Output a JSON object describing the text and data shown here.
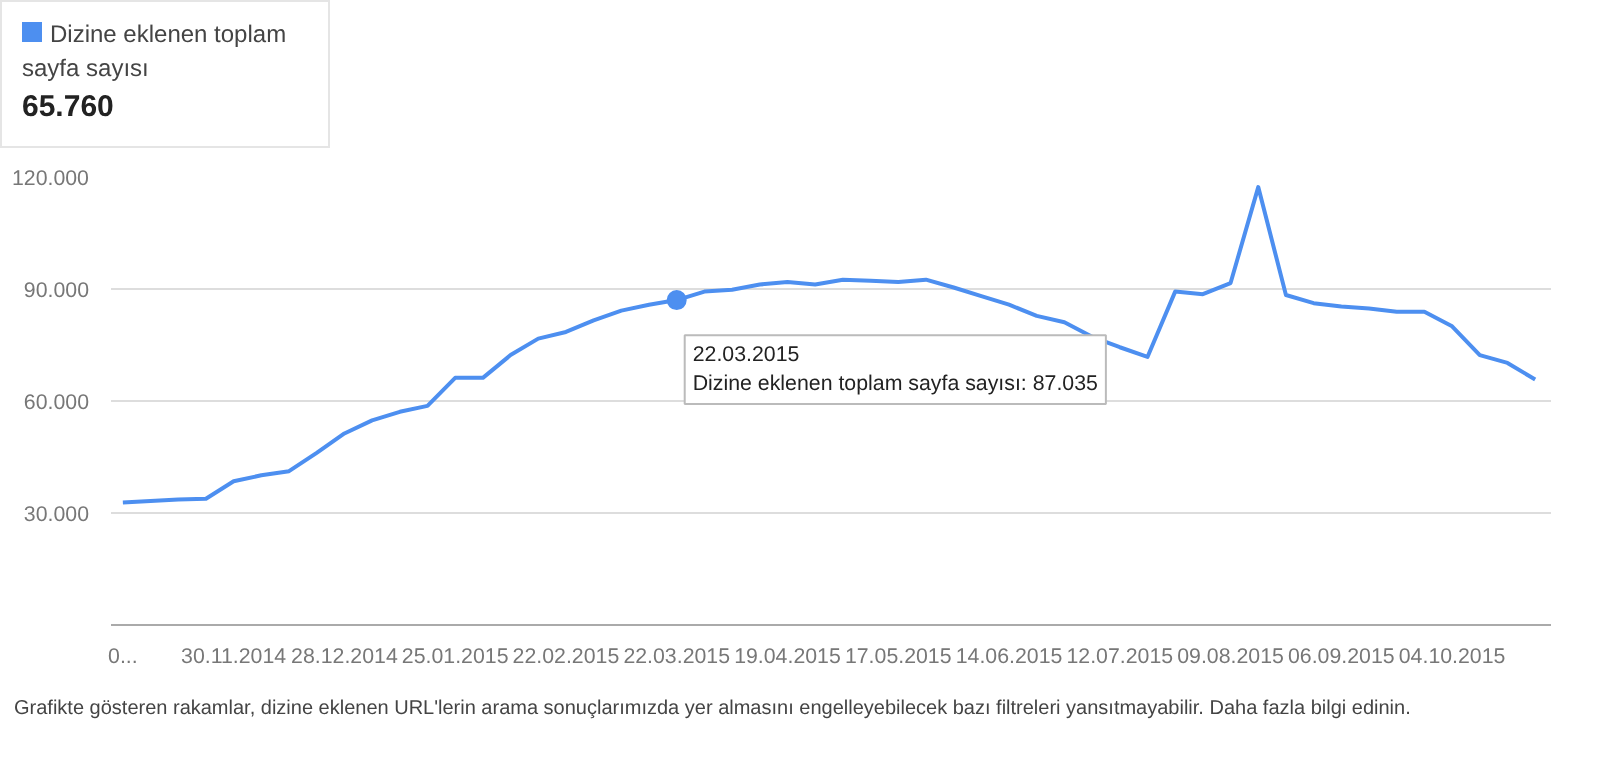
{
  "chart_data": {
    "type": "line",
    "x": [
      "2014-11-02",
      "2014-11-09",
      "2014-11-16",
      "2014-11-23",
      "2014-11-30",
      "2014-12-07",
      "2014-12-14",
      "2014-12-21",
      "2014-12-28",
      "2015-01-04",
      "2015-01-11",
      "2015-01-18",
      "2015-01-25",
      "2015-02-01",
      "2015-02-08",
      "2015-02-15",
      "2015-02-22",
      "2015-03-01",
      "2015-03-08",
      "2015-03-15",
      "2015-03-22",
      "2015-03-29",
      "2015-04-05",
      "2015-04-12",
      "2015-04-19",
      "2015-04-26",
      "2015-05-03",
      "2015-05-10",
      "2015-05-17",
      "2015-05-24",
      "2015-05-31",
      "2015-06-07",
      "2015-06-14",
      "2015-06-21",
      "2015-06-28",
      "2015-07-05",
      "2015-07-12",
      "2015-07-19",
      "2015-07-26",
      "2015-08-02",
      "2015-08-09",
      "2015-08-16",
      "2015-08-23",
      "2015-08-30",
      "2015-09-06",
      "2015-09-13",
      "2015-09-20",
      "2015-09-27",
      "2015-10-04",
      "2015-10-11",
      "2015-10-18",
      "2015-10-25"
    ],
    "series": [
      {
        "name": "Dizine eklenen toplam sayfa sayısı",
        "color": "#4d8ff0",
        "values": [
          32800,
          33200,
          33600,
          33800,
          38500,
          40100,
          41200,
          46100,
          51300,
          54800,
          57100,
          58700,
          66200,
          66200,
          72300,
          76700,
          78500,
          81600,
          84200,
          85800,
          87035,
          89300,
          89800,
          91200,
          91900,
          91200,
          92500,
          92200,
          91900,
          92500,
          90400,
          88100,
          85800,
          82800,
          81100,
          77200,
          74400,
          71800,
          89300,
          88600,
          91600,
          117300,
          88400,
          86200,
          85300,
          84800,
          83900,
          83900,
          80000,
          72300,
          70200,
          65760
        ]
      }
    ],
    "xlim": [
      "2014-10-30",
      "2015-10-29"
    ],
    "xticks": [
      {
        "value": "2014-11-02",
        "label": "0..."
      },
      {
        "value": "2014-11-30",
        "label": "30.11.2014"
      },
      {
        "value": "2014-12-28",
        "label": "28.12.2014"
      },
      {
        "value": "2015-01-25",
        "label": "25.01.2015"
      },
      {
        "value": "2015-02-22",
        "label": "22.02.2015"
      },
      {
        "value": "2015-03-22",
        "label": "22.03.2015"
      },
      {
        "value": "2015-04-19",
        "label": "19.04.2015"
      },
      {
        "value": "2015-05-17",
        "label": "17.05.2015"
      },
      {
        "value": "2015-06-14",
        "label": "14.06.2015"
      },
      {
        "value": "2015-07-12",
        "label": "12.07.2015"
      },
      {
        "value": "2015-08-09",
        "label": "09.08.2015"
      },
      {
        "value": "2015-09-06",
        "label": "06.09.2015"
      },
      {
        "value": "2015-10-04",
        "label": "04.10.2015"
      }
    ],
    "ylim": [
      0,
      120000
    ],
    "yticks": [
      {
        "value": 30000,
        "label": "30.000"
      },
      {
        "value": 60000,
        "label": "60.000"
      },
      {
        "value": 90000,
        "label": "90.000"
      },
      {
        "value": 120000,
        "label": "120.000"
      }
    ],
    "grid": "y",
    "legend": "top left",
    "marker": "none",
    "line_style": "solid",
    "annotations": [
      "65.760",
      {
        "text": "22.03.2015\nDizine eklenen toplam sayfa sayısı: 87.035",
        "x": "2015-03-22",
        "y": 87035
      },
      "Grafikte gösteren rakamlar, dizine eklenen URL'lerin arama sonuçlarımızda yer almasını engelleyebilecek bazı filtreleri yansıtmayabilir. Daha fazla bilgi edinin."
    ]
  }
}
